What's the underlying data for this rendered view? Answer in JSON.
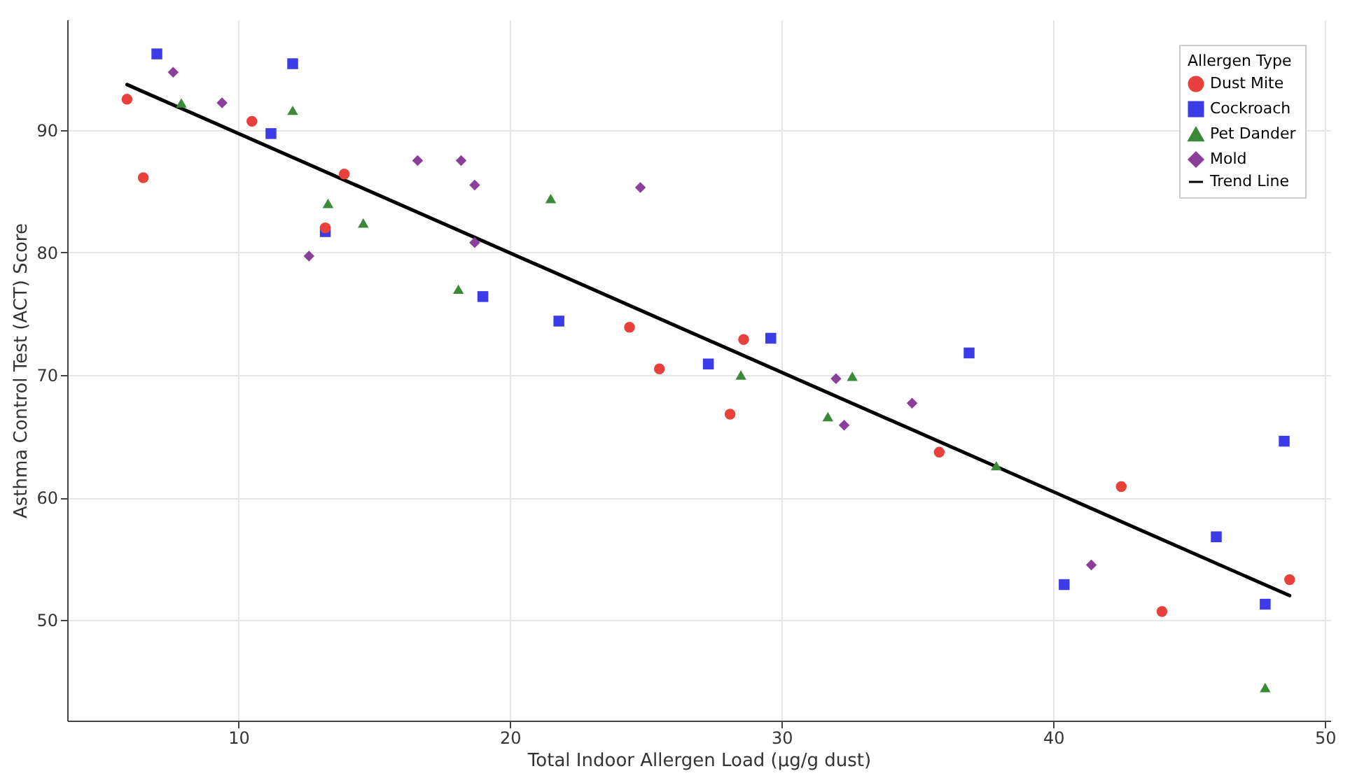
{
  "chart_data": {
    "type": "scatter",
    "xlabel": "Total Indoor Allergen Load (µg/g dust)",
    "ylabel": "Asthma Control Test (ACT) Score",
    "legend_title": "Allergen Type",
    "xlim": [
      3.7,
      50.2
    ],
    "ylim": [
      41.8,
      99
    ],
    "xticks": [
      10,
      20,
      30,
      40,
      50
    ],
    "yticks": [
      50,
      60,
      70,
      80,
      90
    ],
    "grid": true,
    "legend": "top right",
    "series": [
      {
        "name": "Dust Mite",
        "color": "#e8413c",
        "marker": "circle",
        "x": [
          5.9,
          6.5,
          10.5,
          13.9,
          13.2,
          24.4,
          25.5,
          28.6,
          28.1,
          35.8,
          42.5,
          44.0,
          48.7
        ],
        "values": [
          92.5,
          86.1,
          90.7,
          86.4,
          82.0,
          73.9,
          70.5,
          72.9,
          66.8,
          63.7,
          60.9,
          50.7,
          53.3
        ]
      },
      {
        "name": "Cockroach",
        "color": "#3b3be8",
        "marker": "square",
        "x": [
          7.0,
          12.0,
          11.2,
          13.2,
          19.0,
          21.8,
          27.3,
          29.6,
          36.9,
          40.4,
          46.0,
          47.8,
          48.5
        ],
        "values": [
          96.2,
          95.4,
          89.7,
          81.7,
          76.4,
          74.4,
          70.9,
          73.0,
          71.8,
          52.9,
          56.8,
          51.3,
          64.6
        ]
      },
      {
        "name": "Pet Dander",
        "color": "#3a8a3a",
        "marker": "triangle",
        "x": [
          7.9,
          12.0,
          13.3,
          14.6,
          18.1,
          21.5,
          28.5,
          31.7,
          32.6,
          37.9,
          47.8
        ],
        "values": [
          92.2,
          91.6,
          84.0,
          82.4,
          77.0,
          84.4,
          70.0,
          66.6,
          69.9,
          62.6,
          44.5
        ]
      },
      {
        "name": "Mold",
        "color": "#8a3f9a",
        "marker": "diamond",
        "x": [
          7.6,
          9.4,
          12.6,
          16.6,
          18.2,
          18.7,
          18.7,
          24.8,
          32.0,
          32.3,
          34.8,
          41.4
        ],
        "values": [
          94.7,
          92.2,
          79.7,
          87.5,
          87.5,
          85.5,
          80.8,
          85.3,
          69.7,
          65.9,
          67.7,
          54.5
        ]
      },
      {
        "name": "Trend Line",
        "type": "line",
        "color": "#000000",
        "marker": "none",
        "line_style": "solid",
        "x": [
          5.9,
          48.7
        ],
        "values": [
          93.7,
          52.0
        ]
      }
    ]
  }
}
